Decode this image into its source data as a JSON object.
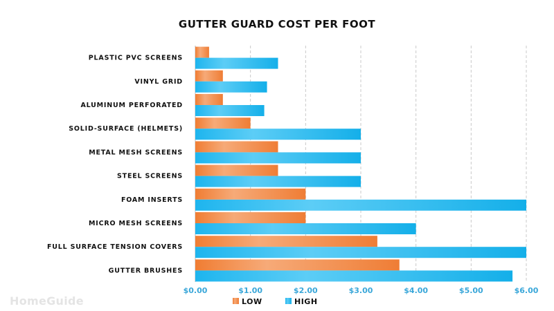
{
  "watermark": "HomeGuide",
  "chart_data": {
    "type": "bar",
    "orientation": "horizontal",
    "title": "GUTTER GUARD COST PER FOOT",
    "categories": [
      "PLASTIC PVC SCREENS",
      "VINYL GRID",
      "ALUMINUM PERFORATED",
      "SOLID-SURFACE (HELMETS)",
      "METAL MESH SCREENS",
      "STEEL SCREENS",
      "FOAM INSERTS",
      "MICRO MESH SCREENS",
      "FULL SURFACE TENSION COVERS",
      "GUTTER BRUSHES"
    ],
    "series": [
      {
        "name": "LOW",
        "color": "#f28a40",
        "values": [
          0.25,
          0.5,
          0.5,
          1.0,
          1.5,
          1.5,
          2.0,
          2.0,
          3.3,
          3.7
        ]
      },
      {
        "name": "HIGH",
        "color": "#20b8f0",
        "values": [
          1.5,
          1.3,
          1.25,
          3.0,
          3.0,
          3.0,
          6.0,
          4.0,
          6.0,
          5.75
        ]
      }
    ],
    "xlim": [
      0,
      6
    ],
    "xticks": [
      "$0.00",
      "$1.00",
      "$2.00",
      "$3.00",
      "$4.00",
      "$5.00",
      "$6.00"
    ],
    "xlabel": "",
    "ylabel": "",
    "grid": "vertical dashed",
    "legend_position": "bottom"
  }
}
